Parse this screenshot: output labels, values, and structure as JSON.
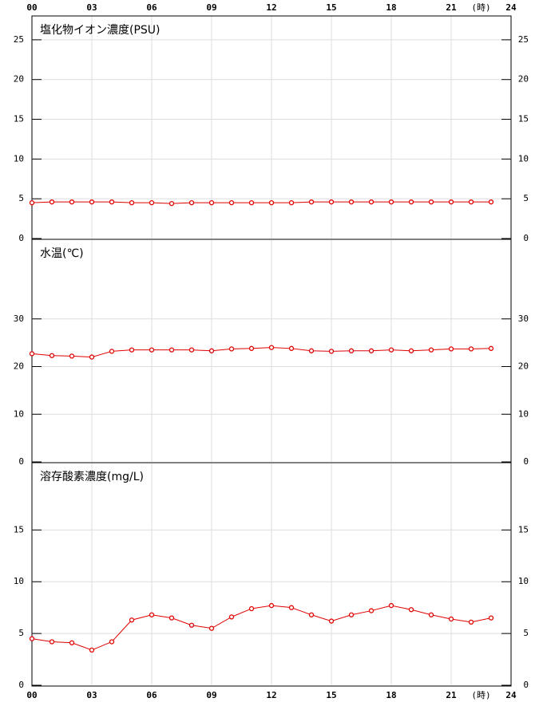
{
  "chart_data": [
    {
      "type": "line",
      "title": "塩化物イオン濃度(PSU)",
      "xlabel": "(時)",
      "x": [
        0,
        1,
        2,
        3,
        4,
        5,
        6,
        7,
        8,
        9,
        10,
        11,
        12,
        13,
        14,
        15,
        16,
        17,
        18,
        19,
        20,
        21,
        22,
        23
      ],
      "xlim": [
        0,
        24
      ],
      "xticks": [
        {
          "value": 0,
          "label": "00"
        },
        {
          "value": 3,
          "label": "03"
        },
        {
          "value": 6,
          "label": "06"
        },
        {
          "value": 9,
          "label": "09"
        },
        12,
        15,
        18,
        21,
        24
      ],
      "ylim": [
        0,
        28
      ],
      "yticks": [
        0,
        5,
        10,
        15,
        20,
        25
      ],
      "series": [
        {
          "color": "#e00000",
          "values": [
            4.5,
            4.6,
            4.6,
            4.6,
            4.6,
            4.5,
            4.5,
            4.4,
            4.5,
            4.5,
            4.5,
            4.5,
            4.5,
            4.5,
            4.6,
            4.6,
            4.6,
            4.6,
            4.6,
            4.6,
            4.6,
            4.6,
            4.6,
            4.6
          ]
        }
      ]
    },
    {
      "type": "line",
      "title": "水温(℃)",
      "x": [
        0,
        1,
        2,
        3,
        4,
        5,
        6,
        7,
        8,
        9,
        10,
        11,
        12,
        13,
        14,
        15,
        16,
        17,
        18,
        19,
        20,
        21,
        22,
        23
      ],
      "xlim": [
        0,
        24
      ],
      "xticks": [
        {
          "value": 0,
          "label": "00"
        },
        {
          "value": 3,
          "label": "03"
        },
        {
          "value": 6,
          "label": "06"
        },
        {
          "value": 9,
          "label": "09"
        },
        12,
        15,
        18,
        21,
        24
      ],
      "ylim": [
        0,
        46.7
      ],
      "yticks": [
        0,
        10,
        20,
        30
      ],
      "series": [
        {
          "color": "#e00000",
          "values": [
            22.7,
            22.3,
            22.2,
            22.0,
            23.2,
            23.5,
            23.5,
            23.5,
            23.5,
            23.3,
            23.7,
            23.8,
            24.0,
            23.8,
            23.3,
            23.2,
            23.3,
            23.3,
            23.5,
            23.3,
            23.5,
            23.7,
            23.7,
            23.8
          ]
        }
      ]
    },
    {
      "type": "line",
      "title": "溶存酸素濃度(mg/L)",
      "xlabel": "(時)",
      "x": [
        0,
        1,
        2,
        3,
        4,
        5,
        6,
        7,
        8,
        9,
        10,
        11,
        12,
        13,
        14,
        15,
        16,
        17,
        18,
        19,
        20,
        21,
        22,
        23
      ],
      "xlim": [
        0,
        24
      ],
      "xticks": [
        {
          "value": 0,
          "label": "00"
        },
        {
          "value": 3,
          "label": "03"
        },
        {
          "value": 6,
          "label": "06"
        },
        {
          "value": 9,
          "label": "09"
        },
        12,
        15,
        18,
        21,
        24
      ],
      "ylim": [
        0,
        21.5
      ],
      "yticks": [
        0,
        5,
        10,
        15
      ],
      "series": [
        {
          "color": "#e00000",
          "values": [
            4.5,
            4.2,
            4.1,
            3.4,
            4.2,
            6.3,
            6.8,
            6.5,
            5.8,
            5.5,
            6.6,
            7.4,
            7.7,
            7.5,
            6.8,
            6.2,
            6.8,
            7.2,
            7.7,
            7.3,
            6.8,
            6.4,
            6.1,
            6.5
          ]
        }
      ]
    }
  ]
}
